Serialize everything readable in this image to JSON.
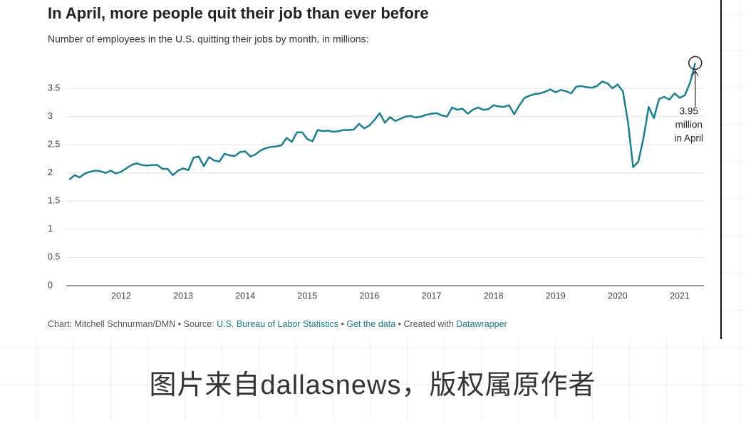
{
  "chart_data": {
    "type": "line",
    "title": "In April, more people quit their job than ever before",
    "subtitle": "Number of employees in the U.S. quitting their jobs by month, in millions:",
    "categories": [
      null,
      null,
      null,
      null,
      null,
      null,
      null,
      null,
      null,
      null,
      "2012",
      null,
      null,
      null,
      null,
      null,
      null,
      null,
      null,
      null,
      null,
      null,
      "2013",
      null,
      null,
      null,
      null,
      null,
      null,
      null,
      null,
      null,
      null,
      null,
      "2014",
      null,
      null,
      null,
      null,
      null,
      null,
      null,
      null,
      null,
      null,
      null,
      "2015",
      null,
      null,
      null,
      null,
      null,
      null,
      null,
      null,
      null,
      null,
      null,
      "2016",
      null,
      null,
      null,
      null,
      null,
      null,
      null,
      null,
      null,
      null,
      null,
      "2017",
      null,
      null,
      null,
      null,
      null,
      null,
      null,
      null,
      null,
      null,
      null,
      "2018",
      null,
      null,
      null,
      null,
      null,
      null,
      null,
      null,
      null,
      null,
      null,
      "2019",
      null,
      null,
      null,
      null,
      null,
      null,
      null,
      null,
      null,
      null,
      null,
      "2020",
      null,
      null,
      null,
      null,
      null,
      null,
      null,
      null,
      null,
      null,
      null,
      "2021",
      null,
      null,
      null
    ],
    "values": [
      1.88,
      1.96,
      1.92,
      1.99,
      2.02,
      2.04,
      2.03,
      2.0,
      2.04,
      1.99,
      2.02,
      2.08,
      2.14,
      2.17,
      2.14,
      2.13,
      2.14,
      2.14,
      2.07,
      2.07,
      1.96,
      2.04,
      2.08,
      2.05,
      2.27,
      2.29,
      2.12,
      2.28,
      2.22,
      2.2,
      2.34,
      2.31,
      2.3,
      2.37,
      2.38,
      2.29,
      2.33,
      2.4,
      2.44,
      2.46,
      2.47,
      2.49,
      2.62,
      2.55,
      2.72,
      2.72,
      2.6,
      2.56,
      2.76,
      2.74,
      2.75,
      2.73,
      2.74,
      2.76,
      2.76,
      2.77,
      2.87,
      2.79,
      2.84,
      2.94,
      3.06,
      2.89,
      2.99,
      2.92,
      2.96,
      3.0,
      3.01,
      2.98,
      3.0,
      3.03,
      3.05,
      3.06,
      3.02,
      3.0,
      3.16,
      3.12,
      3.14,
      3.05,
      3.12,
      3.16,
      3.12,
      3.13,
      3.2,
      3.18,
      3.17,
      3.2,
      3.04,
      3.2,
      3.33,
      3.37,
      3.4,
      3.41,
      3.44,
      3.48,
      3.43,
      3.47,
      3.45,
      3.41,
      3.53,
      3.54,
      3.52,
      3.51,
      3.54,
      3.62,
      3.59,
      3.5,
      3.57,
      3.45,
      2.9,
      2.1,
      2.2,
      2.62,
      3.17,
      2.97,
      3.31,
      3.35,
      3.3,
      3.41,
      3.33,
      3.38,
      3.6,
      3.95
    ],
    "color": "#1a7f8e",
    "ylim": [
      0,
      3.5
    ],
    "yticks": [
      0,
      0.5,
      1,
      1.5,
      2,
      2.5,
      3,
      3.5
    ],
    "grid": true,
    "annotation": [
      "3.95",
      "million",
      "in April"
    ],
    "footer": [
      {
        "text": "Chart: Mitchell Schnurman/DMN • Source: "
      },
      {
        "text": "U.S. Bureau of Labor Statistics",
        "link": true
      },
      {
        "text": " • "
      },
      {
        "text": "Get the data",
        "link": true
      },
      {
        "text": " • Created with "
      },
      {
        "text": "Datawrapper",
        "link": true
      }
    ]
  },
  "caption": "图片来自dallasnews，版权属原作者"
}
